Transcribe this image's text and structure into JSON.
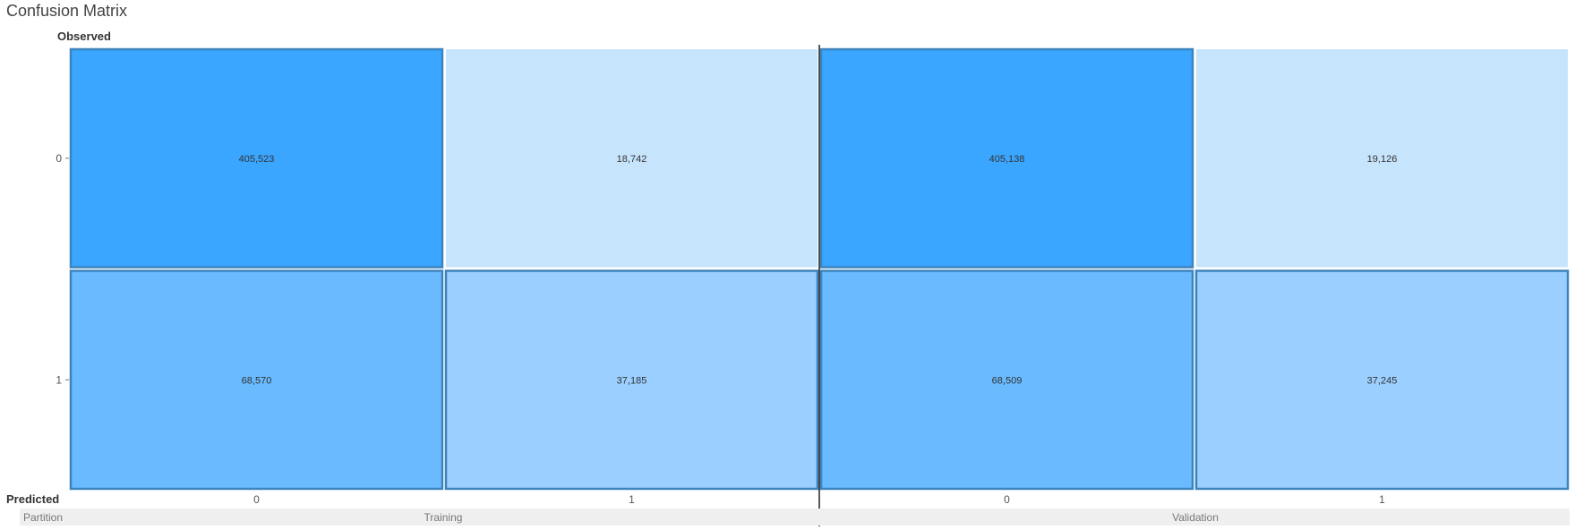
{
  "chart_data": {
    "type": "heatmap",
    "title": "Confusion Matrix",
    "ylabel": "Observed",
    "xlabel": "Predicted",
    "facet_label": "Partition",
    "row_categories": [
      "0",
      "1"
    ],
    "col_categories": [
      "0",
      "1"
    ],
    "partitions": [
      {
        "name": "Training",
        "cells": [
          {
            "observed": "0",
            "predicted": "0",
            "value": 405523,
            "label": "405,523"
          },
          {
            "observed": "0",
            "predicted": "1",
            "value": 18742,
            "label": "18,742"
          },
          {
            "observed": "1",
            "predicted": "0",
            "value": 68570,
            "label": "68,570"
          },
          {
            "observed": "1",
            "predicted": "1",
            "value": 37185,
            "label": "37,185"
          }
        ]
      },
      {
        "name": "Validation",
        "cells": [
          {
            "observed": "0",
            "predicted": "0",
            "value": 405138,
            "label": "405,138"
          },
          {
            "observed": "0",
            "predicted": "1",
            "value": 19126,
            "label": "19,126"
          },
          {
            "observed": "1",
            "predicted": "0",
            "value": 68509,
            "label": "68,509"
          },
          {
            "observed": "1",
            "predicted": "1",
            "value": 37245,
            "label": "37,245"
          }
        ]
      }
    ],
    "colors": {
      "dark": "#3aa6ff",
      "medium": "#69baff",
      "light_medium": "#9acfff",
      "light": "#c7e4fd",
      "highlight_border": "#3c84bd",
      "separator": "#222222"
    }
  }
}
